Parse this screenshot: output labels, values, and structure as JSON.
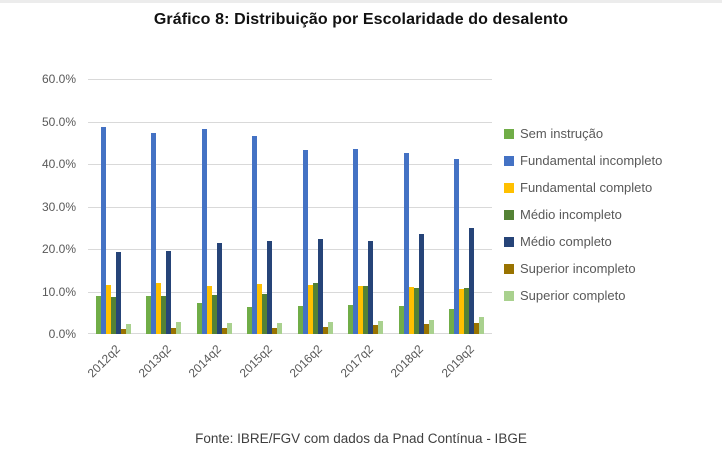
{
  "title": "Gráfico 8: Distribuição por Escolaridade do desalento",
  "footer": "Fonte: IBRE/FGV com dados da Pnad Contínua - IBGE",
  "axis": {
    "ytick_labels": [
      "0.0%",
      "10.0%",
      "20.0%",
      "30.0%",
      "40.0%",
      "50.0%",
      "60.0%"
    ],
    "ytick_values": [
      0,
      10,
      20,
      30,
      40,
      50,
      60
    ],
    "text_color": "#595959",
    "gridline_color": "#d9d9d9"
  },
  "chart_data": {
    "type": "bar",
    "title": "Gráfico 8: Distribuição por Escolaridade do desalento",
    "xlabel": "",
    "ylabel": "",
    "ylim": [
      0,
      60
    ],
    "grid": true,
    "legend_position": "right",
    "categories": [
      "2012q2",
      "2013q2",
      "2014q2",
      "2015q2",
      "2016q2",
      "2017q2",
      "2018q2",
      "2019q2"
    ],
    "series": [
      {
        "name": "Sem instrução",
        "color": "#70AD47",
        "values": [
          8.9,
          9.0,
          7.4,
          6.4,
          6.6,
          6.8,
          6.5,
          5.8
        ]
      },
      {
        "name": "Fundamental incompleto",
        "color": "#4472C4",
        "values": [
          48.6,
          47.2,
          48.2,
          46.7,
          43.3,
          43.6,
          42.7,
          41.2
        ]
      },
      {
        "name": "Fundamental completo",
        "color": "#FFC000",
        "values": [
          11.5,
          12.0,
          11.4,
          11.8,
          11.6,
          11.4,
          11.0,
          10.6
        ]
      },
      {
        "name": "Médio incompleto",
        "color": "#548235",
        "values": [
          8.6,
          8.9,
          9.1,
          9.5,
          12.0,
          11.3,
          10.8,
          10.9
        ]
      },
      {
        "name": "Médio completo",
        "color": "#264478",
        "values": [
          19.4,
          19.6,
          21.4,
          22.0,
          22.4,
          22.0,
          23.5,
          25.0
        ]
      },
      {
        "name": "Superior incompleto",
        "color": "#997300",
        "values": [
          1.1,
          1.3,
          1.4,
          1.5,
          1.6,
          2.2,
          2.3,
          2.7
        ]
      },
      {
        "name": "Superior completo",
        "color": "#A9D18E",
        "values": [
          2.4,
          2.9,
          2.7,
          2.6,
          2.8,
          3.1,
          3.4,
          3.9
        ]
      }
    ]
  }
}
